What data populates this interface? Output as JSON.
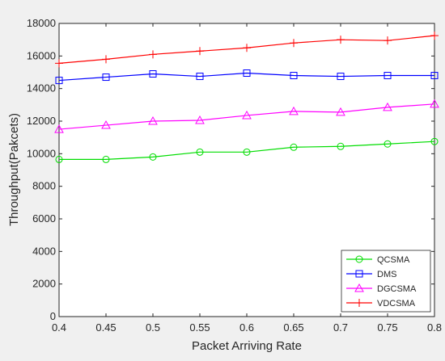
{
  "chart_data": {
    "type": "line",
    "title": "",
    "xlabel": "Packet Arriving Rate",
    "ylabel": "Throughput(Pakcets)",
    "x": [
      0.4,
      0.45,
      0.5,
      0.55,
      0.6,
      0.65,
      0.7,
      0.75,
      0.8
    ],
    "x_tick_labels": [
      "0.4",
      "0.45",
      "0.5",
      "0.55",
      "0.6",
      "0.65",
      "0.7",
      "0.75",
      "0.8"
    ],
    "xlim": [
      0.4,
      0.8
    ],
    "ylim": [
      0,
      18000
    ],
    "y_ticks": [
      0,
      2000,
      4000,
      6000,
      8000,
      10000,
      12000,
      14000,
      16000,
      18000
    ],
    "y_tick_labels": [
      "0",
      "2000",
      "4000",
      "6000",
      "8000",
      "10000",
      "12000",
      "14000",
      "16000",
      "18000"
    ],
    "grid": false,
    "legend_position": "bottom-right",
    "series": [
      {
        "name": "QCSMA",
        "color": "#00dd00",
        "marker": "circle",
        "values": [
          9650,
          9650,
          9800,
          10100,
          10100,
          10400,
          10450,
          10600,
          10750
        ]
      },
      {
        "name": "DMS",
        "color": "#0000ff",
        "marker": "square",
        "values": [
          14500,
          14700,
          14900,
          14750,
          14950,
          14800,
          14750,
          14800,
          14800
        ]
      },
      {
        "name": "DGCSMA",
        "color": "#ff00ff",
        "marker": "triangle",
        "values": [
          11500,
          11750,
          12000,
          12050,
          12350,
          12600,
          12550,
          12850,
          13050
        ]
      },
      {
        "name": "VDCSMA",
        "color": "#ff0000",
        "marker": "plus",
        "values": [
          15550,
          15800,
          16100,
          16300,
          16500,
          16800,
          17000,
          16950,
          17250
        ]
      }
    ]
  }
}
